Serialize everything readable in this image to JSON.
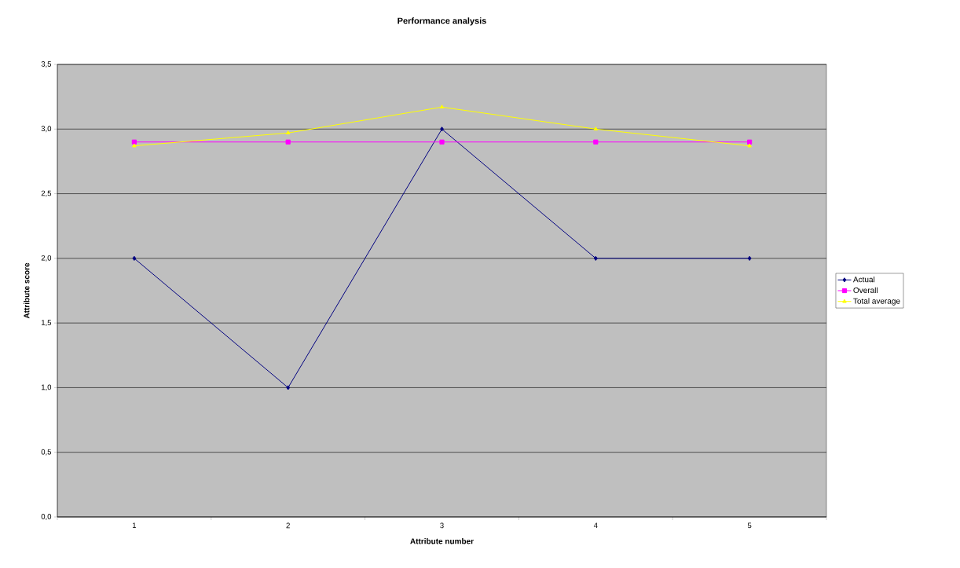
{
  "chart_data": {
    "type": "line",
    "title": "Performance analysis",
    "xlabel": "Attribute number",
    "ylabel": "Attribute score",
    "categories": [
      "1",
      "2",
      "3",
      "4",
      "5"
    ],
    "series": [
      {
        "name": "Actual",
        "color": "#000080",
        "marker": "diamond",
        "values": [
          2,
          1,
          3,
          2,
          2
        ]
      },
      {
        "name": "Overall",
        "color": "#ff00ff",
        "marker": "square",
        "values": [
          2.9,
          2.9,
          2.9,
          2.9,
          2.9
        ]
      },
      {
        "name": "Total average",
        "color": "#ffff00",
        "marker": "triangle",
        "values": [
          2.87,
          2.97,
          3.17,
          3.0,
          2.87
        ]
      }
    ],
    "ylim": [
      0,
      3.5
    ],
    "yticks": [
      {
        "value": 0,
        "label": "0,0"
      },
      {
        "value": 0.5,
        "label": "0,5"
      },
      {
        "value": 1,
        "label": "1,0"
      },
      {
        "value": 1.5,
        "label": "1,5"
      },
      {
        "value": 2,
        "label": "2,0"
      },
      {
        "value": 2.5,
        "label": "2,5"
      },
      {
        "value": 3,
        "label": "3,0"
      },
      {
        "value": 3.5,
        "label": "3,5"
      }
    ],
    "grid": "y",
    "legend": "right",
    "line_style": "solid"
  }
}
